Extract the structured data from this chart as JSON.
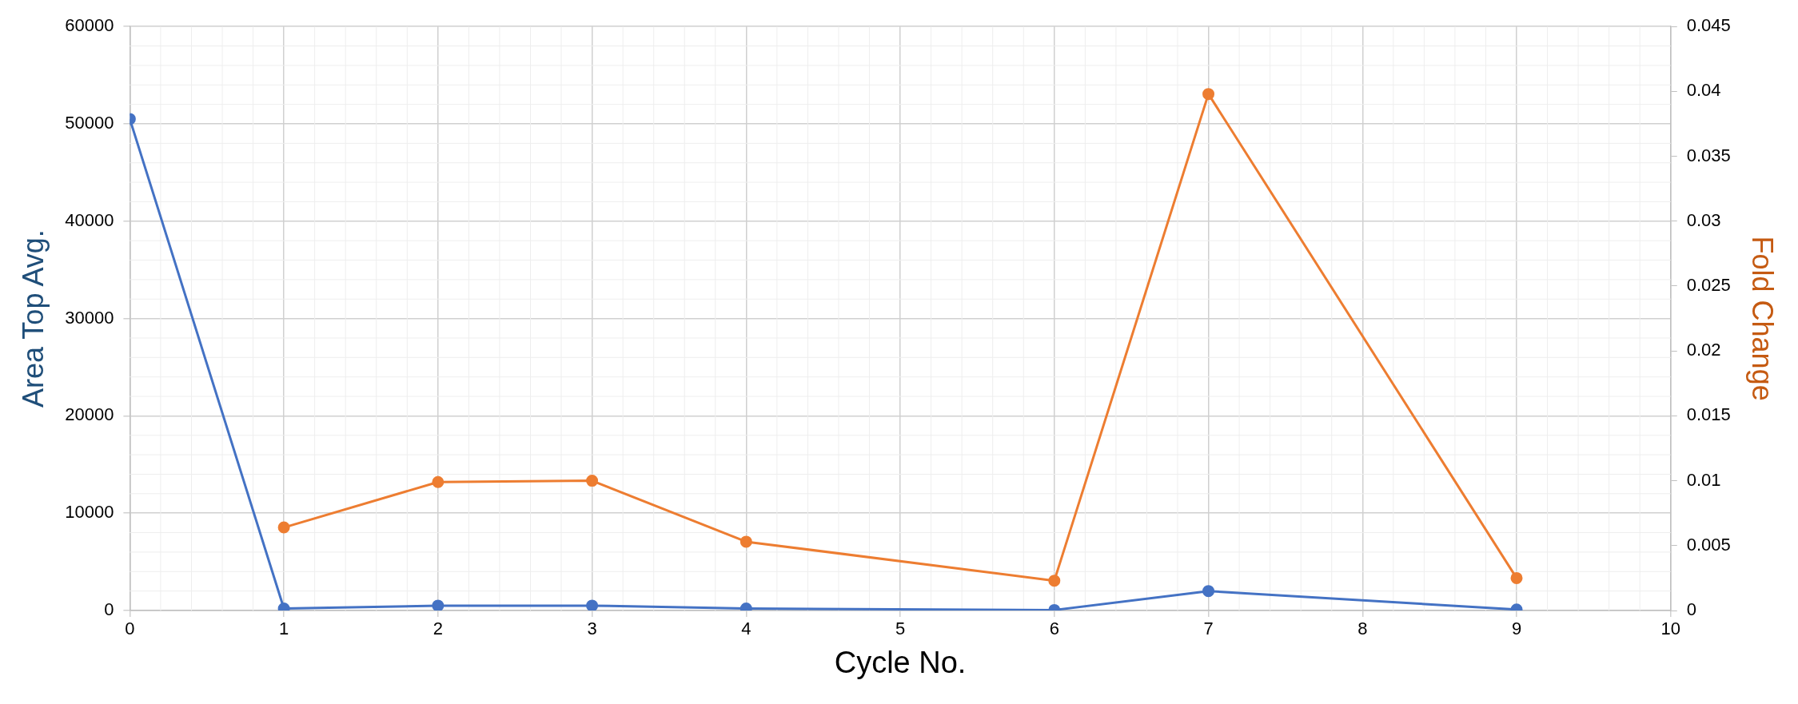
{
  "chart_data": {
    "type": "line",
    "xlabel": "Cycle No.",
    "ylabel": "Area Top Avg.",
    "y2label": "Fold Change",
    "xlim": [
      0,
      10
    ],
    "xticks": [
      0,
      1,
      2,
      3,
      4,
      5,
      6,
      7,
      8,
      9,
      10
    ],
    "ylim": [
      0,
      60000
    ],
    "yticks": [
      0,
      10000,
      20000,
      30000,
      40000,
      50000,
      60000
    ],
    "y2lim": [
      0,
      0.045
    ],
    "y2ticks": [
      0,
      0.005,
      0.01,
      0.015,
      0.02,
      0.025,
      0.03,
      0.035,
      0.04,
      0.045
    ],
    "grid": true,
    "legend": false,
    "marker": "circle",
    "line_style": "solid",
    "series": [
      {
        "color": "#4472c4",
        "x": [
          0,
          1,
          2,
          3,
          4,
          6,
          7,
          9
        ],
        "values": [
          50500,
          200,
          500,
          500,
          200,
          50,
          2000,
          100
        ]
      },
      {
        "color": "#ed7d31",
        "axis": "y2",
        "x": [
          1,
          2,
          3,
          4,
          6,
          7,
          9
        ],
        "values": [
          0.0064,
          0.0099,
          0.01,
          0.0053,
          0.0023,
          0.0398,
          0.0025
        ]
      }
    ]
  }
}
